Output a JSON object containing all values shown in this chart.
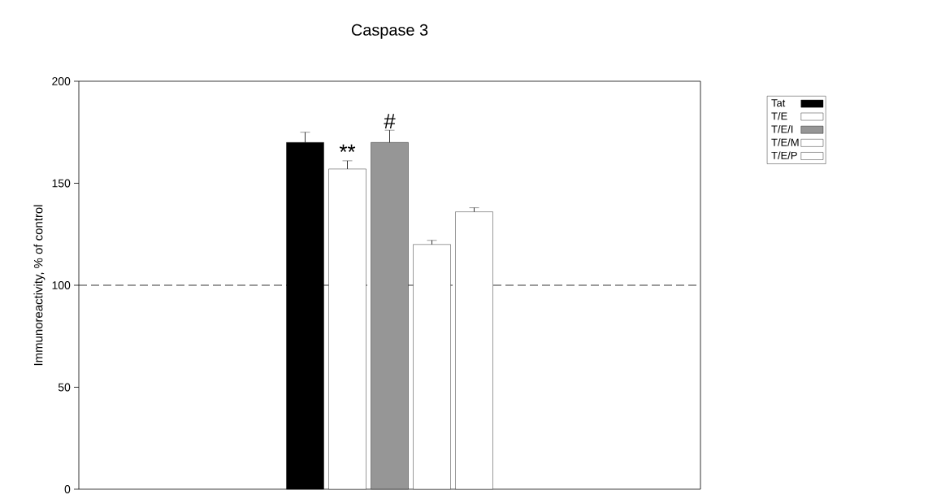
{
  "chart_data": {
    "type": "bar",
    "title": "Caspase 3",
    "ylabel": "Immunoreactivity, % of control",
    "categories": [
      null
    ],
    "series": [
      {
        "name": "Tat",
        "color": "#000000",
        "values": [
          170
        ],
        "errors": [
          5
        ]
      },
      {
        "name": "T/E",
        "color": "#ffffff",
        "values": [
          157
        ],
        "errors": [
          4
        ],
        "value_labels": [
          "**"
        ]
      },
      {
        "name": "T/E/I",
        "color": "#969696",
        "values": [
          170
        ],
        "errors": [
          6
        ],
        "value_labels": [
          "#"
        ]
      },
      {
        "name": "T/E/M",
        "color": "#ffffff",
        "values": [
          120
        ],
        "errors": [
          2
        ]
      },
      {
        "name": "T/E/P",
        "color": "#ffffff",
        "values": [
          136
        ],
        "errors": [
          2
        ]
      }
    ],
    "ylim": [
      0,
      200
    ],
    "yticks": [
      0,
      50,
      100,
      150,
      200
    ],
    "ref_lines": [
      {
        "axis": "y",
        "value": 100,
        "line_style": "dashed"
      }
    ],
    "legend": "right",
    "grid": false
  }
}
